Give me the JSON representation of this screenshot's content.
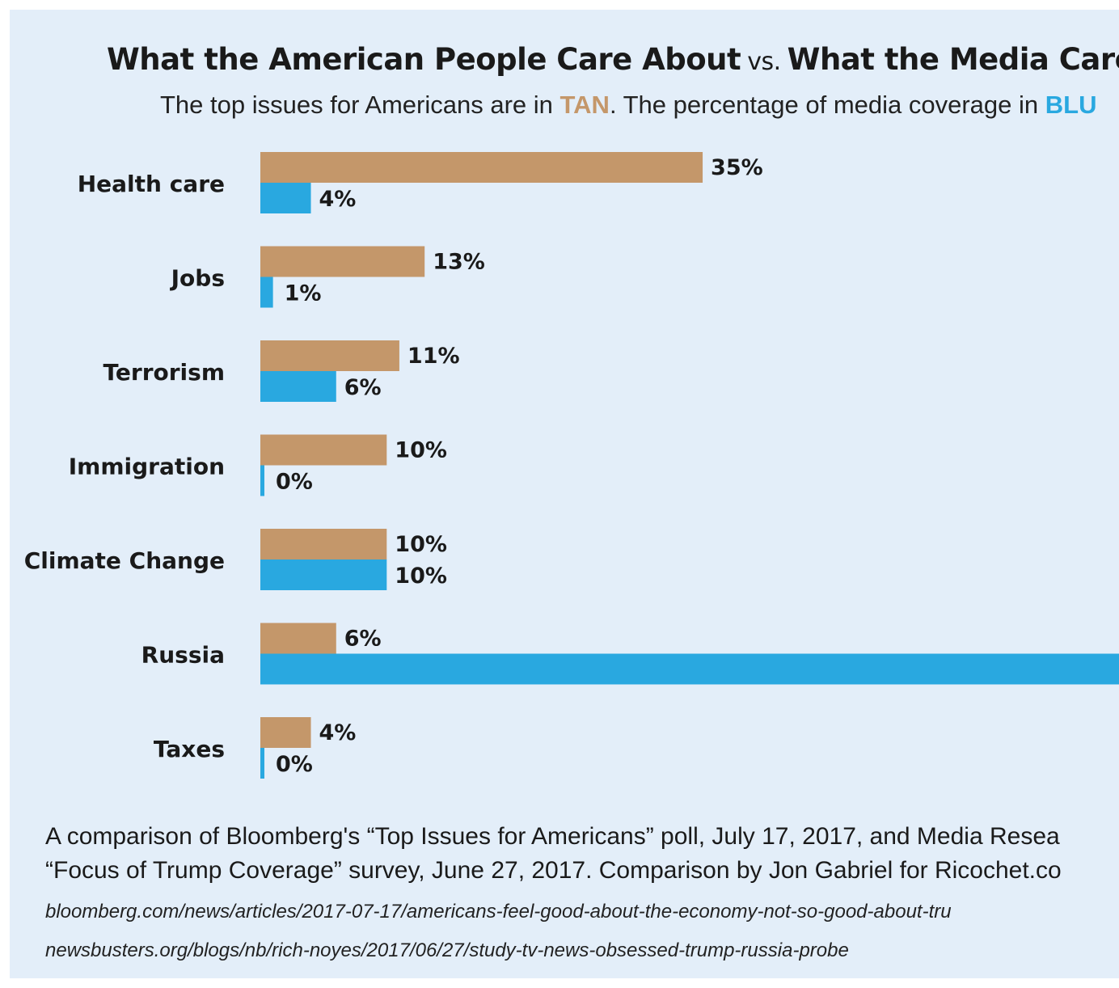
{
  "header": {
    "title_part1": "What the American People Care About",
    "title_vs": "vs.",
    "title_part2": "What the Media Cares A",
    "subtitle_part1": "The top issues for Americans are in ",
    "subtitle_tan": "TAN",
    "subtitle_part2": ". The percentage of media coverage in ",
    "subtitle_blue": "BLU"
  },
  "colors": {
    "tan": "#c4976a",
    "blue": "#29a8e0",
    "background": "#e3eef9"
  },
  "chart_data": {
    "type": "bar",
    "orientation": "horizontal",
    "categories": [
      "Health care",
      "Jobs",
      "Terrorism",
      "Immigration",
      "Climate Change",
      "Russia",
      "Taxes"
    ],
    "series": [
      {
        "values": [
          35,
          13,
          11,
          10,
          10,
          6,
          4
        ],
        "labels": [
          "35%",
          "13%",
          "11%",
          "10%",
          "10%",
          "6%",
          "4%"
        ],
        "color": "#c4976a"
      },
      {
        "values": [
          4,
          1,
          6,
          0,
          10,
          null,
          0
        ],
        "labels": [
          "4%",
          "1%",
          "6%",
          "0%",
          "10%",
          "",
          "0%"
        ],
        "color": "#29a8e0"
      }
    ],
    "notes": "The Russia media-coverage bar extends past the visible right edge; its value is cut off."
  },
  "footer": {
    "note_line1": "A comparison of Bloomberg's “Top Issues for Americans” poll, July 17, 2017, and Media Resea",
    "note_line2": "“Focus of Trump Coverage” survey, June 27, 2017. Comparison by Jon Gabriel for Ricochet.co",
    "source1": "bloomberg.com/news/articles/2017-07-17/americans-feel-good-about-the-economy-not-so-good-about-tru",
    "source2": "newsbusters.org/blogs/nb/rich-noyes/2017/06/27/study-tv-news-obsessed-trump-russia-probe"
  }
}
